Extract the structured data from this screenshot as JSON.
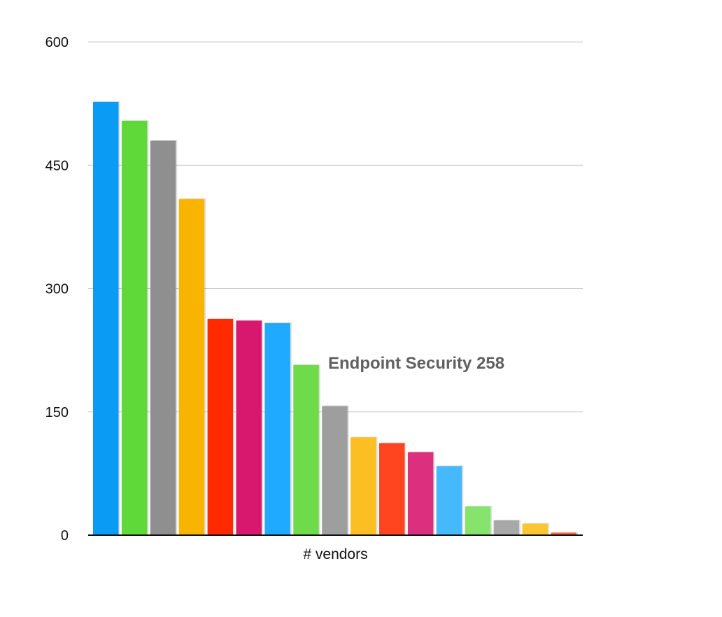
{
  "chart_data": {
    "type": "bar",
    "xlabel": "# vendors",
    "ylabel": "",
    "ylim": [
      0,
      600
    ],
    "yticks": [
      0,
      150,
      300,
      450,
      600
    ],
    "grid": true,
    "annotation": "Endpoint Security  258",
    "values": [
      527,
      504,
      480,
      409,
      263,
      261,
      258,
      207,
      157,
      119,
      112,
      101,
      84,
      35,
      18,
      14,
      3
    ],
    "colors": [
      "#0a9cf5",
      "#5fd93a",
      "#8f8f8f",
      "#f8b400",
      "#ff2a00",
      "#d8176e",
      "#1faaff",
      "#6ddb4a",
      "#9e9e9e",
      "#fbbf24",
      "#ff4520",
      "#dc2f7e",
      "#45b9fb",
      "#86e36b",
      "#a8a8a8",
      "#fcc532",
      "#ff5f3a"
    ]
  }
}
